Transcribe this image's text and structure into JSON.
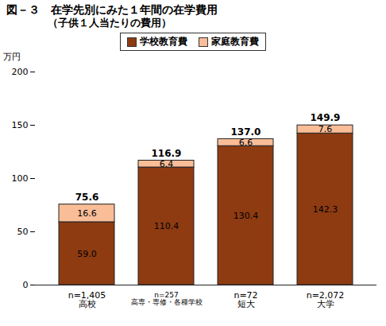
{
  "chart_data": {
    "type": "bar",
    "title": "図－３　在学先別にみた１年間の在学費用",
    "subtitle": "（子供１人当たりの費用）",
    "y_label": "万円",
    "categories": [
      "高校",
      "高専・専修・各種学校",
      "短大",
      "大学"
    ],
    "annotations": [
      "n=1,405",
      "n=257",
      "n=72",
      "n=2,072"
    ],
    "series": [
      {
        "name": "学校教育費",
        "color": "#8e3b12",
        "values": [
          59.0,
          110.4,
          130.4,
          142.3
        ],
        "value_labels": [
          "59.0",
          "110.4",
          "130.4",
          "142.3"
        ]
      },
      {
        "name": "家庭教育費",
        "color": "#f9bd98",
        "values": [
          16.6,
          6.4,
          6.6,
          7.6
        ],
        "value_labels": [
          "16.6",
          "6.4",
          "6.6",
          "7.6"
        ]
      }
    ],
    "totals": [
      75.6,
      116.9,
      137.0,
      149.9
    ],
    "total_labels": [
      "75.6",
      "116.9",
      "137.0",
      "149.9"
    ],
    "stacked": true,
    "data_labels": true,
    "legend": "top",
    "grid": false,
    "ylim": [
      0,
      200
    ],
    "yticks": [
      0,
      50,
      100,
      150,
      200
    ]
  }
}
